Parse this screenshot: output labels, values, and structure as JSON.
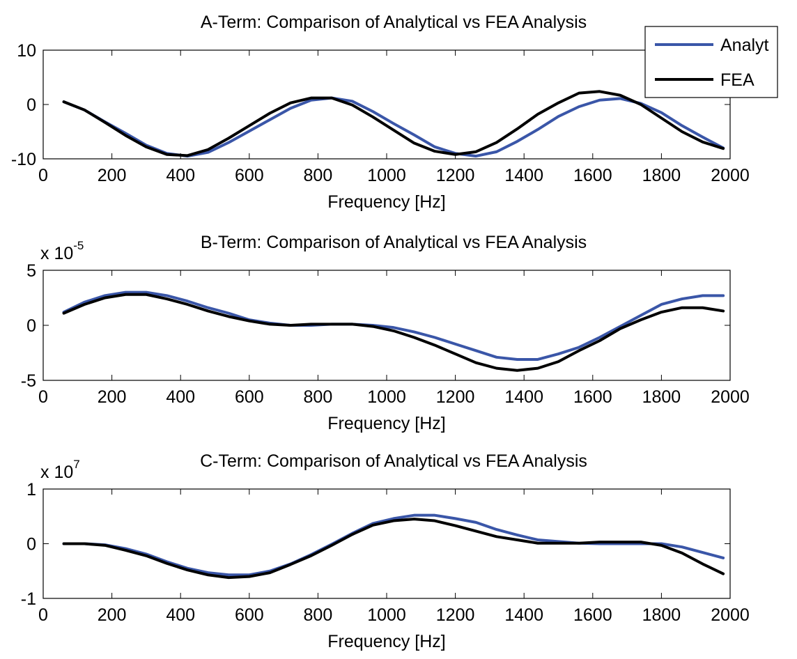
{
  "chart_data": [
    {
      "type": "line",
      "title": "A-Term: Comparison of Analytical vs FEA Analysis",
      "xlabel": "Frequency [Hz]",
      "ylabel": "",
      "xlim": [
        0,
        2000
      ],
      "ylim": [
        -10,
        10
      ],
      "xticks": [
        "0",
        "200",
        "400",
        "600",
        "800",
        "1000",
        "1200",
        "1400",
        "1600",
        "1800",
        "2000"
      ],
      "yticks": [
        "-10",
        "0",
        "10"
      ],
      "multiplier": "",
      "legend": {
        "position": "top-right",
        "entries": [
          "Analyt",
          "FEA"
        ]
      },
      "x": [
        60,
        120,
        180,
        240,
        300,
        360,
        420,
        480,
        540,
        600,
        660,
        720,
        780,
        840,
        900,
        960,
        1020,
        1080,
        1140,
        1200,
        1260,
        1320,
        1380,
        1440,
        1500,
        1560,
        1620,
        1680,
        1740,
        1800,
        1860,
        1920,
        1980
      ],
      "series": [
        {
          "name": "Analyt",
          "color": "#3a56a8",
          "values": [
            0.5,
            -1.0,
            -3.2,
            -5.3,
            -7.5,
            -9.0,
            -9.5,
            -8.8,
            -7.0,
            -4.9,
            -2.8,
            -0.7,
            0.8,
            1.2,
            0.6,
            -1.3,
            -3.5,
            -5.6,
            -7.8,
            -9.0,
            -9.5,
            -8.7,
            -6.8,
            -4.6,
            -2.2,
            -0.4,
            0.8,
            1.1,
            0.2,
            -1.5,
            -3.9,
            -6.0,
            -8.0
          ]
        },
        {
          "name": "FEA",
          "color": "#000000",
          "values": [
            0.5,
            -1.0,
            -3.3,
            -5.7,
            -7.8,
            -9.2,
            -9.4,
            -8.3,
            -6.2,
            -3.9,
            -1.6,
            0.3,
            1.2,
            1.2,
            -0.1,
            -2.3,
            -4.7,
            -7.1,
            -8.6,
            -9.2,
            -8.7,
            -7.0,
            -4.5,
            -1.8,
            0.3,
            2.1,
            2.4,
            1.7,
            0.0,
            -2.5,
            -5.0,
            -6.9,
            -8.1
          ]
        }
      ]
    },
    {
      "type": "line",
      "title": "B-Term: Comparison of Analytical vs FEA Analysis",
      "xlabel": "Frequency [Hz]",
      "ylabel": "",
      "xlim": [
        0,
        2000
      ],
      "ylim": [
        -5,
        5
      ],
      "xticks": [
        "0",
        "200",
        "400",
        "600",
        "800",
        "1000",
        "1200",
        "1400",
        "1600",
        "1800",
        "2000"
      ],
      "yticks": [
        "-5",
        "0",
        "5"
      ],
      "multiplier": {
        "base": "x 10",
        "exponent": "-5"
      },
      "x": [
        60,
        120,
        180,
        240,
        300,
        360,
        420,
        480,
        540,
        600,
        660,
        720,
        780,
        840,
        900,
        960,
        1020,
        1080,
        1140,
        1200,
        1260,
        1320,
        1380,
        1440,
        1500,
        1560,
        1620,
        1680,
        1740,
        1800,
        1860,
        1920,
        1980
      ],
      "series": [
        {
          "name": "Analyt",
          "color": "#3a56a8",
          "values": [
            1.2,
            2.1,
            2.7,
            3.0,
            3.0,
            2.7,
            2.2,
            1.6,
            1.1,
            0.5,
            0.2,
            0.0,
            0.0,
            0.1,
            0.1,
            0.0,
            -0.2,
            -0.6,
            -1.1,
            -1.7,
            -2.3,
            -2.9,
            -3.1,
            -3.1,
            -2.6,
            -2.0,
            -1.1,
            -0.1,
            0.9,
            1.9,
            2.4,
            2.7,
            2.7
          ]
        },
        {
          "name": "FEA",
          "color": "#000000",
          "values": [
            1.1,
            1.9,
            2.5,
            2.8,
            2.8,
            2.4,
            1.9,
            1.3,
            0.8,
            0.4,
            0.1,
            0.0,
            0.1,
            0.1,
            0.1,
            -0.1,
            -0.5,
            -1.1,
            -1.8,
            -2.6,
            -3.4,
            -3.9,
            -4.1,
            -3.9,
            -3.3,
            -2.3,
            -1.4,
            -0.3,
            0.5,
            1.2,
            1.6,
            1.6,
            1.3
          ]
        }
      ]
    },
    {
      "type": "line",
      "title": "C-Term: Comparison of Analytical vs FEA Analysis",
      "xlabel": "Frequency [Hz]",
      "ylabel": "",
      "xlim": [
        0,
        2000
      ],
      "ylim": [
        -1,
        1
      ],
      "xticks": [
        "0",
        "200",
        "400",
        "600",
        "800",
        "1000",
        "1200",
        "1400",
        "1600",
        "1800",
        "2000"
      ],
      "yticks": [
        "-1",
        "0",
        "1"
      ],
      "multiplier": {
        "base": "x 10",
        "exponent": "7"
      },
      "x": [
        60,
        120,
        180,
        240,
        300,
        360,
        420,
        480,
        540,
        600,
        660,
        720,
        780,
        840,
        900,
        960,
        1020,
        1080,
        1140,
        1200,
        1260,
        1320,
        1380,
        1440,
        1500,
        1560,
        1620,
        1680,
        1740,
        1800,
        1860,
        1920,
        1980
      ],
      "series": [
        {
          "name": "Analyt",
          "color": "#3a56a8",
          "values": [
            0.0,
            0.0,
            -0.02,
            -0.09,
            -0.19,
            -0.33,
            -0.45,
            -0.53,
            -0.57,
            -0.57,
            -0.5,
            -0.37,
            -0.2,
            -0.01,
            0.19,
            0.37,
            0.46,
            0.52,
            0.52,
            0.46,
            0.39,
            0.26,
            0.16,
            0.07,
            0.04,
            0.01,
            0.0,
            0.0,
            0.0,
            0.0,
            -0.06,
            -0.16,
            -0.26
          ]
        },
        {
          "name": "FEA",
          "color": "#000000",
          "values": [
            0.0,
            0.0,
            -0.03,
            -0.12,
            -0.22,
            -0.36,
            -0.48,
            -0.57,
            -0.62,
            -0.6,
            -0.53,
            -0.38,
            -0.22,
            -0.03,
            0.17,
            0.34,
            0.42,
            0.45,
            0.42,
            0.33,
            0.23,
            0.13,
            0.07,
            0.01,
            0.01,
            0.01,
            0.03,
            0.03,
            0.03,
            -0.03,
            -0.17,
            -0.37,
            -0.55
          ]
        }
      ]
    }
  ]
}
